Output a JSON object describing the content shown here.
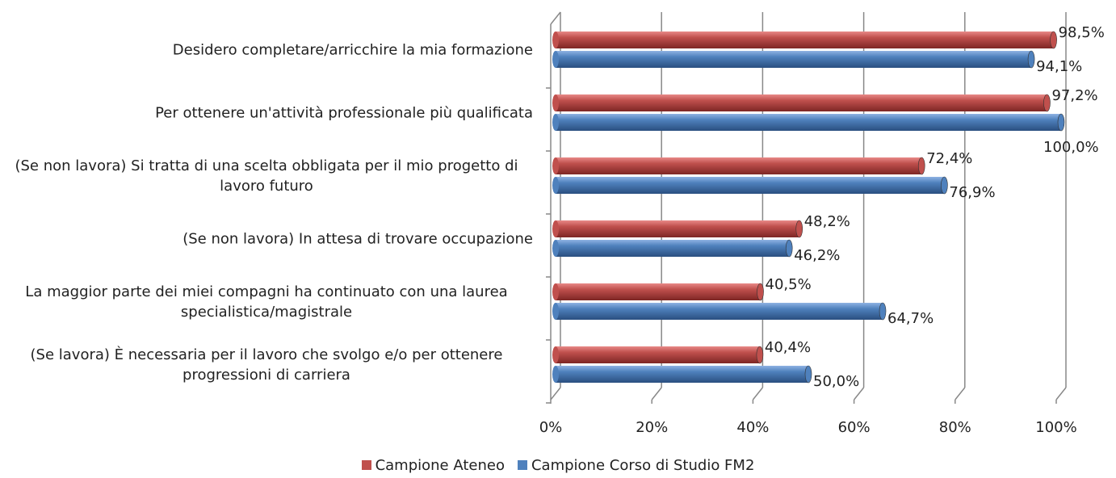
{
  "chart_data": {
    "type": "bar",
    "orientation": "horizontal",
    "categories": [
      "Desidero completare/arricchire la mia formazione",
      "Per ottenere un'attività professionale più qualificata",
      "(Se non lavora) Si tratta di una scelta obbligata per il mio progetto di lavoro futuro",
      "(Se non lavora) In attesa di trovare occupazione",
      "La maggior parte dei miei compagni ha continuato con una laurea specialistica/magistrale",
      "(Se lavora) È necessaria per il lavoro che svolgo e/o per ottenere progressioni di carriera"
    ],
    "series": [
      {
        "name": "Campione Ateneo",
        "color": "#c0504d",
        "values": [
          98.5,
          97.2,
          72.4,
          48.2,
          40.5,
          40.4
        ],
        "value_labels": [
          "98,5%",
          "97,2%",
          "72,4%",
          "48,2%",
          "40,5%",
          "40,4%"
        ]
      },
      {
        "name": "Campione Corso di Studio FM2",
        "color": "#4f81bd",
        "values": [
          94.1,
          100.0,
          76.9,
          46.2,
          64.7,
          50.0
        ],
        "value_labels": [
          "94,1%",
          "100,0%",
          "76,9%",
          "46,2%",
          "64,7%",
          "50,0%"
        ]
      }
    ],
    "xlim": [
      0,
      100
    ],
    "xticks": [
      {
        "value": 0,
        "label": "0%"
      },
      {
        "value": 20,
        "label": "20%"
      },
      {
        "value": 40,
        "label": "40%"
      },
      {
        "value": 60,
        "label": "60%"
      },
      {
        "value": 80,
        "label": "80%"
      },
      {
        "value": 100,
        "label": "100%"
      }
    ],
    "grid": true,
    "legend": "bottom"
  }
}
